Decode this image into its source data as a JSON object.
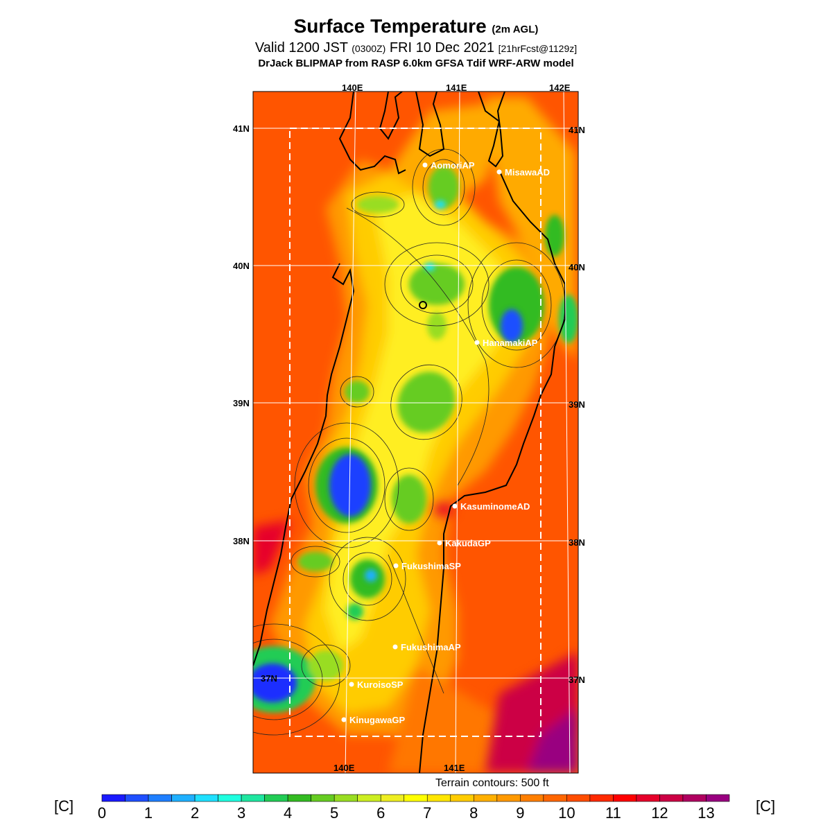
{
  "title": {
    "main": "Surface Temperature",
    "main_suffix": "(2m AGL)",
    "valid_prefix": "Valid 1200 JST",
    "valid_utc": "(0300Z)",
    "valid_date": "FRI 10 Dec 2021",
    "forecast": "[21hrFcst@1129z]",
    "model": "DrJack BLIPMAP from RASP 6.0km GFSA Tdif WRF-ARW model"
  },
  "axes": {
    "lon_top": [
      "140E",
      "141E",
      "142E"
    ],
    "lon_bottom": [
      "140E",
      "141E"
    ],
    "lat_left": [
      "41N",
      "40N",
      "39N",
      "38N",
      "37N"
    ],
    "lat_right": [
      "41N",
      "40N",
      "39N",
      "38N",
      "37N"
    ]
  },
  "stations": [
    {
      "name": "AomoriAP"
    },
    {
      "name": "MisawaAD"
    },
    {
      "name": "HanamakiAP"
    },
    {
      "name": "KasuminomeAD"
    },
    {
      "name": "KakudaGP"
    },
    {
      "name": "FukushimaSP"
    },
    {
      "name": "FukushimaAP"
    },
    {
      "name": "KuroisoSP"
    },
    {
      "name": "KinugawaGP"
    }
  ],
  "terrain_note": "Terrain contours: 500 ft",
  "colorbar": {
    "unit_left": "[C]",
    "unit_right": "[C]",
    "ticks": [
      "0",
      "1",
      "2",
      "3",
      "4",
      "5",
      "6",
      "7",
      "8",
      "9",
      "10",
      "11",
      "12",
      "13"
    ],
    "colors": [
      "#1a1aff",
      "#1f4fff",
      "#1f7fff",
      "#1fb0ff",
      "#1fe0ff",
      "#1fffe0",
      "#1fe6a0",
      "#22cc55",
      "#33bb22",
      "#66cc22",
      "#99dd22",
      "#ccee22",
      "#eeee22",
      "#ffff00",
      "#ffe600",
      "#ffcc00",
      "#ffb000",
      "#ff9900",
      "#ff7f00",
      "#ff6600",
      "#ff4d00",
      "#ff2a00",
      "#ff0000",
      "#e6002a",
      "#cc0044",
      "#b00060",
      "#990080"
    ]
  }
}
